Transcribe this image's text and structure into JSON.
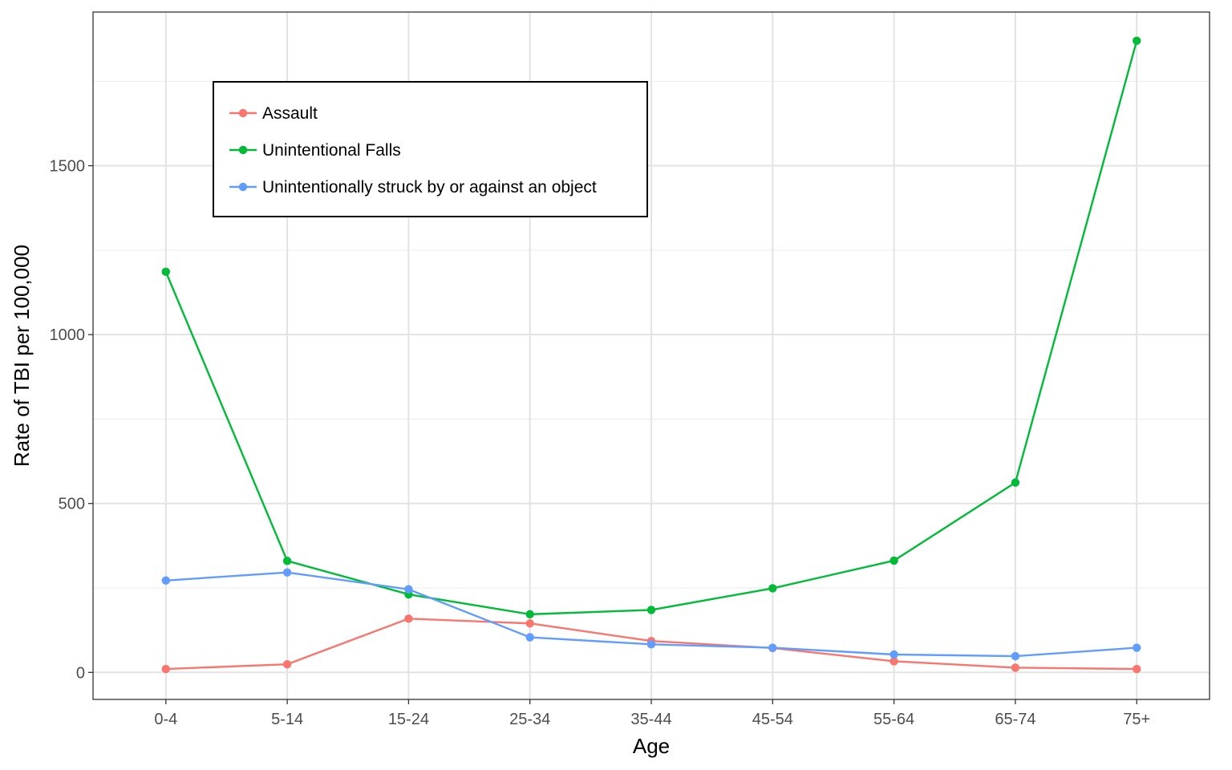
{
  "chart_data": {
    "type": "line",
    "xlabel": "Age",
    "ylabel": "Rate of TBI per 100,000",
    "categories": [
      "0-4",
      "5-14",
      "15-24",
      "25-34",
      "35-44",
      "45-54",
      "55-64",
      "65-74",
      "75+"
    ],
    "ylim": [
      -80,
      1955
    ],
    "yticks": [
      0,
      500,
      1000,
      1500
    ],
    "grid": true,
    "legend_position": "top-left",
    "series": [
      {
        "name": "Assault",
        "color": "#F8766D",
        "values": [
          10,
          24,
          159,
          145,
          93,
          72,
          33,
          14,
          10
        ]
      },
      {
        "name": "Unintentional Falls",
        "color": "#00BA38",
        "values": [
          1186,
          330,
          231,
          172,
          185,
          249,
          331,
          562,
          1870
        ]
      },
      {
        "name": "Unintentionally struck by or against an object",
        "color": "#619CFF",
        "values": [
          272,
          296,
          246,
          104,
          83,
          73,
          53,
          48,
          73
        ]
      }
    ]
  }
}
